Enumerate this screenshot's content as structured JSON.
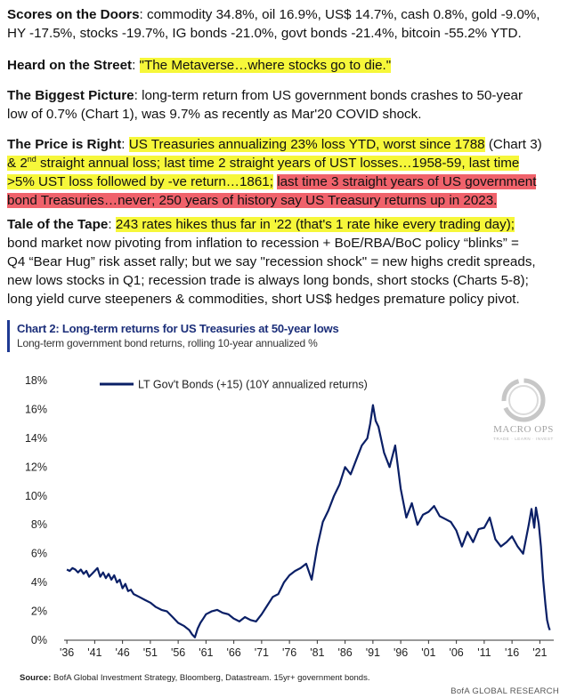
{
  "paragraphs": {
    "p1": {
      "label": "Scores on the Doors",
      "line1": ": commodity 34.8%, oil 16.9%, US$ 14.7%, cash 0.8%, gold -9.0%,",
      "line2": "HY -17.5%, stocks -19.7%, IG bonds -21.0%, govt bonds -21.4%, bitcoin -55.2% YTD."
    },
    "p2": {
      "label": "Heard on the Street",
      "sep": ": ",
      "quote": "\"The Metaverse…where stocks go to die.\""
    },
    "p3": {
      "label": "The Biggest Picture",
      "line1": ": long-term return from US government bonds crashes to 50-year",
      "line2": "low of 0.7% (Chart 1), was 9.7% as recently as Mar'20 COVID shock."
    },
    "p4": {
      "label": "The Price is Right",
      "sep": ": ",
      "hl1": "US Treasuries annualizing 23% loss YTD, worst since 1788",
      "plain1": " (Chart 3)",
      "hl2a": "& 2",
      "hl2sup": "nd",
      "hl2b": " straight annual loss; last time 2 straight years of UST losses…1958-59, last time",
      "hl3": ">5% UST loss followed by -ve return…1861;",
      "plain3": " ",
      "red1": "last time 3 straight years of US government",
      "red2": "bond Treasuries…never; 250 years of history say US Treasury returns up in 2023."
    },
    "p5": {
      "label": "Tale of the Tape",
      "sep": ": ",
      "hl": "243 rates hikes thus far in '22 (that's 1 rate hike every trading day);",
      "line2": "bond market now pivoting from inflation to recession + BoE/RBA/BoC policy “blinks” =",
      "line3": "Q4 “Bear Hug” risk asset rally; but we say \"recession shock\" = new highs credit spreads,",
      "line4": "new lows stocks in Q1; recession trade is always long bonds, short stocks (Charts 5-8);",
      "line5": "long yield curve steepeners & commodities, short US$ hedges premature policy pivot."
    }
  },
  "chart_header": {
    "title": "Chart 2: Long-term returns for US Treasuries at 50-year lows",
    "subtitle": "Long-term government bond returns, rolling 10-year annualized %"
  },
  "watermark": {
    "brand": "MACRO OPS",
    "tagline": "TRADE · LEARN · INVEST"
  },
  "source": {
    "label": "Source:",
    "text": " BofA Global Investment Strategy, Bloomberg, Datastream. 15yr+ government bonds."
  },
  "footer_brand": "BofA GLOBAL RESEARCH",
  "colors": {
    "line": "#0a1f66",
    "highlight_yellow": "#f6f73a",
    "highlight_red": "#f0626b",
    "header_bar": "#1f3a93"
  },
  "chart_data": {
    "type": "line",
    "xlabel": "",
    "ylabel": "",
    "xlim": [
      1935.5,
      2023.5
    ],
    "ylim": [
      0,
      18
    ],
    "x_ticks": [
      1936,
      1941,
      1946,
      1951,
      1956,
      1961,
      1966,
      1971,
      1976,
      1981,
      1986,
      1991,
      1996,
      2001,
      2006,
      2011,
      2016,
      2021
    ],
    "x_tick_labels": [
      "'36",
      "'41",
      "'46",
      "'51",
      "'56",
      "'61",
      "'66",
      "'71",
      "'76",
      "'81",
      "'86",
      "'91",
      "'96",
      "'01",
      "'06",
      "'11",
      "'16",
      "'21"
    ],
    "y_ticks": [
      0,
      2,
      4,
      6,
      8,
      10,
      12,
      14,
      16,
      18
    ],
    "y_tick_labels": [
      "0%",
      "2%",
      "4%",
      "6%",
      "8%",
      "10%",
      "12%",
      "14%",
      "16%",
      "18%"
    ],
    "grid": false,
    "legend": "top-left",
    "series": [
      {
        "name": "LT Gov't Bonds (+15) (10Y annualized returns)",
        "color": "#0a1f66",
        "x": [
          1936.0,
          1936.5,
          1937.0,
          1937.5,
          1938.0,
          1938.5,
          1939.0,
          1939.5,
          1940.0,
          1940.5,
          1941.0,
          1941.5,
          1942.0,
          1942.5,
          1943.0,
          1943.5,
          1944.0,
          1944.5,
          1945.0,
          1945.5,
          1946.0,
          1946.5,
          1947.0,
          1947.5,
          1948.0,
          1949.0,
          1950.0,
          1951.0,
          1952.0,
          1953.0,
          1954.0,
          1955.0,
          1956.0,
          1957.0,
          1958.0,
          1958.5,
          1959.0,
          1959.5,
          1960.0,
          1960.5,
          1961.0,
          1962.0,
          1963.0,
          1964.0,
          1965.0,
          1966.0,
          1967.0,
          1968.0,
          1969.0,
          1970.0,
          1971.0,
          1972.0,
          1973.0,
          1974.0,
          1975.0,
          1976.0,
          1977.0,
          1978.0,
          1979.0,
          1980.0,
          1981.0,
          1982.0,
          1983.0,
          1984.0,
          1985.0,
          1986.0,
          1987.0,
          1988.0,
          1989.0,
          1990.0,
          1990.5,
          1991.0,
          1991.5,
          1992.0,
          1993.0,
          1994.0,
          1995.0,
          1996.0,
          1997.0,
          1998.0,
          1999.0,
          2000.0,
          2001.0,
          2002.0,
          2003.0,
          2004.0,
          2005.0,
          2006.0,
          2007.0,
          2008.0,
          2009.0,
          2010.0,
          2011.0,
          2012.0,
          2013.0,
          2014.0,
          2015.0,
          2016.0,
          2017.0,
          2018.0,
          2019.0,
          2019.5,
          2020.0,
          2020.3,
          2020.8,
          2021.2,
          2021.6,
          2022.0,
          2022.3,
          2022.6,
          2022.8
        ],
        "y": [
          4.9,
          4.8,
          5.0,
          4.9,
          4.7,
          4.9,
          4.6,
          4.8,
          4.4,
          4.6,
          4.8,
          5.0,
          4.4,
          4.7,
          4.3,
          4.6,
          4.2,
          4.5,
          4.0,
          4.2,
          3.6,
          3.9,
          3.4,
          3.5,
          3.2,
          3.0,
          2.8,
          2.6,
          2.3,
          2.1,
          2.0,
          1.6,
          1.2,
          1.0,
          0.7,
          0.4,
          0.2,
          0.8,
          1.2,
          1.5,
          1.8,
          2.0,
          2.1,
          1.9,
          1.8,
          1.5,
          1.3,
          1.6,
          1.4,
          1.3,
          1.8,
          2.4,
          3.0,
          3.2,
          4.0,
          4.5,
          4.8,
          5.0,
          5.3,
          4.2,
          6.5,
          8.2,
          9.0,
          10.0,
          10.8,
          12.0,
          11.5,
          12.5,
          13.5,
          14.0,
          15.0,
          16.3,
          15.2,
          14.8,
          13.0,
          12.0,
          13.5,
          10.5,
          8.5,
          9.5,
          8.0,
          8.7,
          8.9,
          9.3,
          8.6,
          8.4,
          8.2,
          7.6,
          6.5,
          7.5,
          6.8,
          7.7,
          7.8,
          8.5,
          7.0,
          6.5,
          6.8,
          7.2,
          6.5,
          6.0,
          8.0,
          9.1,
          7.8,
          9.2,
          8.1,
          6.5,
          4.2,
          2.5,
          1.4,
          0.9,
          0.7
        ]
      }
    ]
  }
}
